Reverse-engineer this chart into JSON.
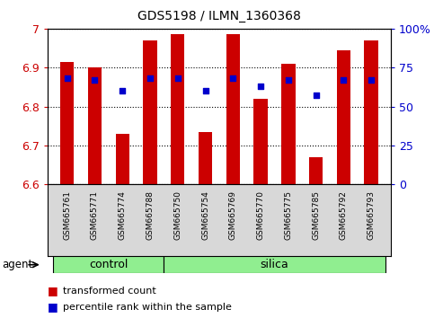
{
  "title": "GDS5198 / ILMN_1360368",
  "samples": [
    "GSM665761",
    "GSM665771",
    "GSM665774",
    "GSM665788",
    "GSM665750",
    "GSM665754",
    "GSM665769",
    "GSM665770",
    "GSM665775",
    "GSM665785",
    "GSM665792",
    "GSM665793"
  ],
  "groups": [
    "control",
    "control",
    "control",
    "control",
    "silica",
    "silica",
    "silica",
    "silica",
    "silica",
    "silica",
    "silica",
    "silica"
  ],
  "bar_values": [
    6.915,
    6.9,
    6.73,
    6.97,
    6.985,
    6.735,
    6.985,
    6.82,
    6.91,
    6.67,
    6.945,
    6.97
  ],
  "dot_values": [
    6.872,
    6.868,
    6.84,
    6.872,
    6.872,
    6.84,
    6.872,
    6.852,
    6.868,
    6.828,
    6.868,
    6.868
  ],
  "ylim": [
    6.6,
    7.0
  ],
  "yticks": [
    6.6,
    6.7,
    6.8,
    6.9,
    7.0
  ],
  "ytick_labels": [
    "6.6",
    "6.7",
    "6.8",
    "6.9",
    "7"
  ],
  "right_yticks": [
    0,
    25,
    50,
    75,
    100
  ],
  "right_ytick_labels": [
    "0",
    "25",
    "50",
    "75",
    "100%"
  ],
  "bar_color": "#cc0000",
  "dot_color": "#0000cc",
  "bar_bottom": 6.6,
  "control_color": "#90ee90",
  "silica_color": "#90ee90",
  "agent_label": "agent",
  "control_label": "control",
  "silica_label": "silica",
  "legend_bar_label": "transformed count",
  "legend_dot_label": "percentile rank within the sample",
  "background_color": "#ffffff",
  "plot_bg_color": "#ffffff",
  "tick_label_color_left": "#cc0000",
  "tick_label_color_right": "#0000cc",
  "n_control": 4,
  "n_silica": 8
}
